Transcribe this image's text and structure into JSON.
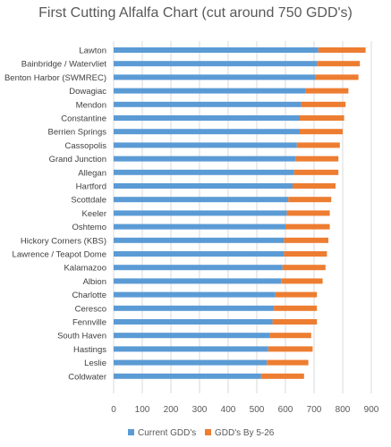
{
  "chart_data": {
    "type": "bar",
    "orientation": "horizontal",
    "stacked": true,
    "title": "First Cutting Alfalfa Chart (cut around 750 GDD's)",
    "xlabel": "",
    "ylabel": "",
    "xlim": [
      0,
      900
    ],
    "xticks": [
      0,
      100,
      200,
      300,
      400,
      500,
      600,
      700,
      800,
      900
    ],
    "grid": "vertical",
    "legend_position": "bottom",
    "categories": [
      "Lawton",
      "Bainbridge / Watervliet",
      "Benton Harbor (SWMREC)",
      "Dowagiac",
      "Mendon",
      "Constantine",
      "Berrien Springs",
      "Cassopolis",
      "Grand Junction",
      "Allegan",
      "Hartford",
      "Scottdale",
      "Keeler",
      "Oshtemo",
      "Hickory Corners (KBS)",
      "Lawrence / Teapot Dome",
      "Kalamazoo",
      "Albion",
      "Charlotte",
      "Ceresco",
      "Fennville",
      "South Haven",
      "Hastings",
      "Leslie",
      "Coldwater"
    ],
    "series": [
      {
        "name": "Current GDD's",
        "color": "#5b9bd5",
        "values": [
          715,
          710,
          705,
          670,
          655,
          650,
          650,
          640,
          635,
          630,
          625,
          610,
          605,
          600,
          595,
          595,
          590,
          585,
          565,
          560,
          555,
          545,
          540,
          535,
          515
        ]
      },
      {
        "name": "GDD's By 5-26",
        "color": "#ed7d31",
        "values": [
          165,
          150,
          150,
          150,
          155,
          155,
          150,
          150,
          150,
          155,
          150,
          150,
          150,
          155,
          155,
          150,
          150,
          145,
          145,
          150,
          155,
          145,
          155,
          145,
          150
        ]
      }
    ]
  }
}
